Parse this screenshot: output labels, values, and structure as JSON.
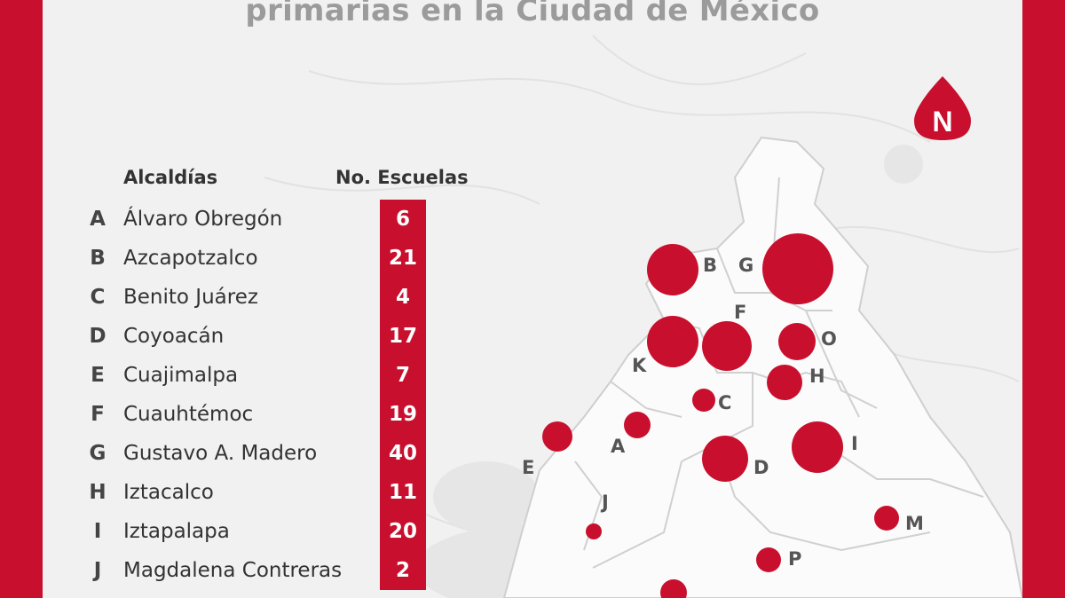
{
  "title_line": "primarias en la Ciudad de México",
  "north_label": "N",
  "table": {
    "header_name": "Alcaldías",
    "header_count": "No. Escuelas",
    "rows": [
      {
        "letter": "A",
        "name": "Álvaro Obregón",
        "count": "6"
      },
      {
        "letter": "B",
        "name": "Azcapotzalco",
        "count": "21"
      },
      {
        "letter": "C",
        "name": "Benito Juárez",
        "count": "4"
      },
      {
        "letter": "D",
        "name": "Coyoacán",
        "count": "17"
      },
      {
        "letter": "E",
        "name": "Cuajimalpa",
        "count": "7"
      },
      {
        "letter": "F",
        "name": "Cuauhtémoc",
        "count": "19"
      },
      {
        "letter": "G",
        "name": "Gustavo A. Madero",
        "count": "40"
      },
      {
        "letter": "H",
        "name": "Iztacalco",
        "count": "11"
      },
      {
        "letter": "I",
        "name": "Iztapalapa",
        "count": "20"
      },
      {
        "letter": "J",
        "name": "Magdalena Contreras",
        "count": "2"
      }
    ]
  },
  "map_labels": [
    "A",
    "B",
    "C",
    "D",
    "E",
    "F",
    "G",
    "H",
    "I",
    "J",
    "K",
    "M",
    "O",
    "P"
  ],
  "colors": {
    "accent": "#c8102e",
    "panel": "#f1f1f1",
    "title": "#9b9b9b"
  }
}
